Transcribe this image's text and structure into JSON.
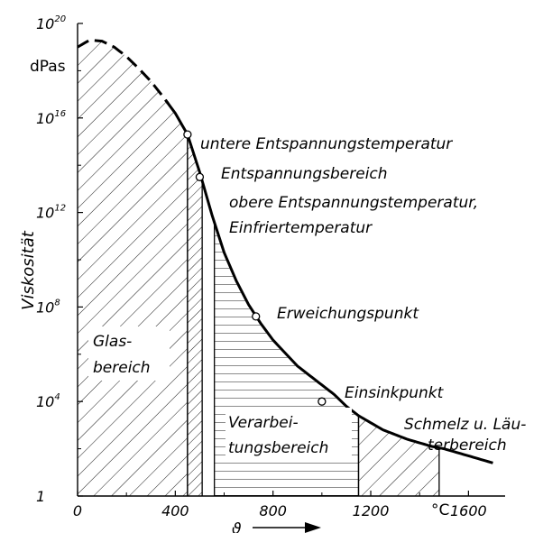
{
  "chart_data": {
    "type": "area",
    "ylabel": "Viskosität",
    "y_unit": "dPas",
    "x_symbol": "ϑ",
    "x_unit": "°C",
    "x_ticks": [
      "0",
      "400",
      "800",
      "1200",
      "1600"
    ],
    "y_ticks": [
      {
        "base": "1",
        "exp": ""
      },
      {
        "base": "10",
        "exp": "4"
      },
      {
        "base": "10",
        "exp": "8"
      },
      {
        "base": "10",
        "exp": "12"
      },
      {
        "base": "10",
        "exp": "16"
      },
      {
        "base": "10",
        "exp": "20"
      }
    ],
    "xlim": [
      0,
      1750
    ],
    "y_scale": "log",
    "ylim_log10": [
      0,
      20
    ],
    "series": [
      {
        "x": [
          0,
          50,
          100,
          150,
          200,
          250,
          300,
          350,
          400,
          450,
          500,
          550,
          600,
          650,
          700,
          750,
          800,
          850,
          900,
          950,
          1000,
          1050,
          1100,
          1150,
          1200,
          1250,
          1300,
          1350,
          1400,
          1450,
          1500,
          1550,
          1600,
          1650,
          1700
        ],
        "log10_y": [
          19.0,
          19.3,
          19.25,
          19.0,
          18.6,
          18.1,
          17.55,
          16.9,
          16.2,
          15.3,
          13.7,
          11.9,
          10.3,
          9.1,
          8.1,
          7.3,
          6.6,
          6.05,
          5.5,
          5.1,
          4.7,
          4.3,
          3.8,
          3.4,
          3.1,
          2.8,
          2.6,
          2.4,
          2.25,
          2.1,
          2.0,
          1.85,
          1.7,
          1.55,
          1.4
        ],
        "dashed_until_x": 370
      }
    ],
    "points": [
      {
        "x": 450,
        "log10_y": 15.3,
        "label": "untere Entspannungstemperatur"
      },
      {
        "x": 500,
        "log10_y": 13.5,
        "label": "obere Entspannungstemperatur,"
      },
      {
        "x": 730,
        "log10_y": 7.6,
        "label": "Erweichungspunkt"
      },
      {
        "x": 1000,
        "log10_y": 4.0,
        "label": "Einsinkpunkt"
      }
    ],
    "regions": [
      {
        "name": "glass",
        "x_range": [
          0,
          450
        ],
        "pattern": "diagonal"
      },
      {
        "name": "relaxation",
        "x_range": [
          450,
          510
        ],
        "pattern": "diagonal"
      },
      {
        "name": "working",
        "x_range": [
          560,
          1150
        ],
        "pattern": "horizontal"
      },
      {
        "name": "melting",
        "x_range": [
          1150,
          1480
        ],
        "pattern": "diagonal"
      }
    ],
    "annotations": {
      "glas": [
        "Glas-",
        "bereich"
      ],
      "entspannungsbereich": "Entspannungsbereich",
      "obere_line2": "Einfriertemperatur",
      "verarbeitung": [
        "Verarbei-",
        "tungsbereich"
      ],
      "schmelz": [
        "Schmelz u. Läu-",
        "terbereich"
      ]
    }
  }
}
